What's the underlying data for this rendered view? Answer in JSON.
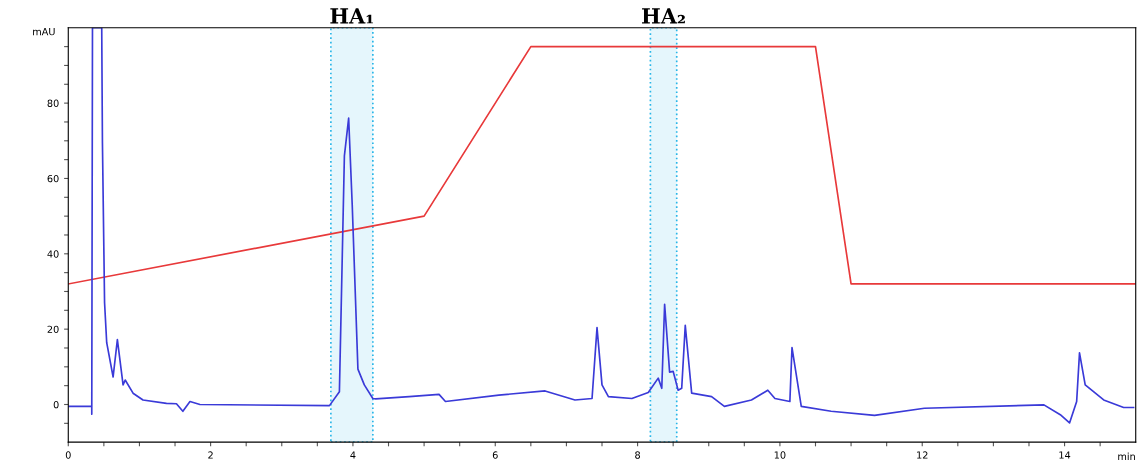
{
  "chart_data": {
    "type": "line",
    "xlabel": "min",
    "ylabel": "mAU",
    "xlim": [
      0,
      15
    ],
    "ylim": [
      -10,
      100
    ],
    "xticks": [
      0,
      {
        "value": 0.5,
        "label": null
      },
      {
        "value": 1,
        "label": null
      },
      {
        "value": 1.5,
        "label": null
      },
      2,
      {
        "value": 2.5,
        "label": null
      },
      {
        "value": 3,
        "label": null
      },
      {
        "value": 3.5,
        "label": null
      },
      4,
      {
        "value": 4.5,
        "label": null
      },
      {
        "value": 5,
        "label": null
      },
      {
        "value": 5.5,
        "label": null
      },
      6,
      {
        "value": 6.5,
        "label": null
      },
      {
        "value": 7,
        "label": null
      },
      {
        "value": 7.5,
        "label": null
      },
      8,
      {
        "value": 8.5,
        "label": null
      },
      {
        "value": 9,
        "label": null
      },
      {
        "value": 9.5,
        "label": null
      },
      10,
      {
        "value": 10.5,
        "label": null
      },
      {
        "value": 11,
        "label": null
      },
      {
        "value": 11.5,
        "label": null
      },
      12,
      {
        "value": 12.5,
        "label": null
      },
      {
        "value": 13,
        "label": null
      },
      {
        "value": 13.5,
        "label": null
      },
      14,
      {
        "value": 14.5,
        "label": null
      }
    ],
    "yticks": [
      {
        "value": -5,
        "label": null
      },
      0,
      {
        "value": 5,
        "label": null
      },
      {
        "value": 10,
        "label": null
      },
      {
        "value": 15,
        "label": null
      },
      20,
      {
        "value": 25,
        "label": null
      },
      {
        "value": 30,
        "label": null
      },
      {
        "value": 35,
        "label": null
      },
      40,
      {
        "value": 45,
        "label": null
      },
      {
        "value": 50,
        "label": null
      },
      {
        "value": 55,
        "label": null
      },
      60,
      {
        "value": 65,
        "label": null
      },
      {
        "value": 70,
        "label": null
      },
      {
        "value": 75,
        "label": null
      },
      80,
      {
        "value": 85,
        "label": null
      },
      {
        "value": 90,
        "label": null
      },
      {
        "value": 95,
        "label": null
      }
    ],
    "grid": false,
    "legend": false,
    "series": [
      {
        "color": "#e8393a",
        "x": [
          0,
          5.0,
          6.5,
          10.5,
          11.0,
          15
        ],
        "values": [
          32,
          50,
          95,
          95,
          32,
          32
        ]
      },
      {
        "color": "#3a3ad8",
        "x": [
          0,
          0.33,
          0.33,
          0.34,
          0.47,
          0.48,
          0.51,
          0.54,
          0.63,
          0.69,
          0.77,
          0.8,
          0.91,
          1.05,
          1.38,
          1.52,
          1.61,
          1.71,
          1.85,
          3.67,
          3.81,
          3.88,
          3.94,
          3.99,
          4.07,
          4.16,
          4.28,
          4.32,
          4.79,
          5.21,
          5.3,
          6.05,
          6.7,
          7.12,
          7.36,
          7.43,
          7.5,
          7.59,
          7.92,
          8.15,
          8.29,
          8.34,
          8.38,
          8.45,
          8.5,
          8.57,
          8.62,
          8.67,
          8.76,
          9.04,
          9.22,
          9.6,
          9.83,
          9.93,
          10.14,
          10.17,
          10.3,
          10.72,
          11.33,
          12.03,
          13.71,
          13.94,
          14.07,
          14.17,
          14.21,
          14.29,
          14.55,
          14.83,
          14.97
        ],
        "values": [
          -0.5,
          -0.5,
          -2.6,
          100,
          100,
          69.5,
          27,
          16.4,
          7.3,
          17.2,
          5.2,
          6.5,
          3,
          1.2,
          0.3,
          0.2,
          -1.8,
          0.8,
          0,
          -0.3,
          3.4,
          66,
          76,
          53,
          9.4,
          5.2,
          1.6,
          1.5,
          2.1,
          2.7,
          0.8,
          2.5,
          3.6,
          1.2,
          1.6,
          20.4,
          5.2,
          2.1,
          1.6,
          3.2,
          7.0,
          4.3,
          26.6,
          8.6,
          8.8,
          3.8,
          4.3,
          21,
          3,
          2.1,
          -0.5,
          1.2,
          3.8,
          1.6,
          0.8,
          15.1,
          -0.5,
          -1.8,
          -2.9,
          -1,
          -0.1,
          -2.7,
          -4.9,
          0.8,
          13.7,
          5.2,
          1.2,
          -0.8,
          -0.8
        ]
      }
    ],
    "bands": [
      {
        "axis": "x",
        "from": 3.69,
        "to": 4.28,
        "color": "#29b6e8",
        "label": "HA₁"
      },
      {
        "axis": "x",
        "from": 8.18,
        "to": 8.55,
        "color": "#29b6e8",
        "label": "HA₂"
      }
    ]
  }
}
